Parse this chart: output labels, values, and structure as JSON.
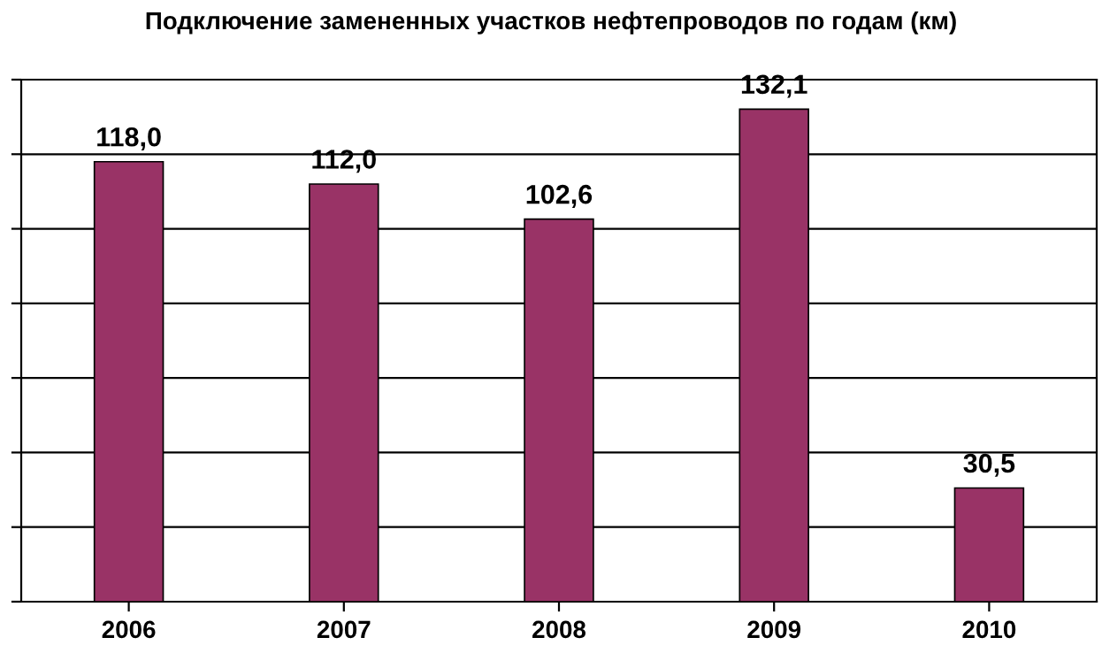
{
  "chart_data": {
    "type": "bar",
    "title": "Подключение замененных участков нефтепроводов по годам (км)",
    "categories": [
      "2006",
      "2007",
      "2008",
      "2009",
      "2010"
    ],
    "values": [
      118.0,
      112.0,
      102.6,
      132.1,
      30.5
    ],
    "value_labels": [
      "118,0",
      "112,0",
      "102,6",
      "132,1",
      "30,5"
    ],
    "color": "#993366",
    "ylim": [
      0,
      140
    ],
    "yticks": [
      {
        "value": 0,
        "label": null
      },
      {
        "value": 20,
        "label": null
      },
      {
        "value": 40,
        "label": null
      },
      {
        "value": 60,
        "label": null
      },
      {
        "value": 80,
        "label": null
      },
      {
        "value": 100,
        "label": null
      },
      {
        "value": 120,
        "label": null
      },
      {
        "value": 140,
        "label": null
      }
    ],
    "grid": "y",
    "tick_labels": "x",
    "legend": false
  }
}
